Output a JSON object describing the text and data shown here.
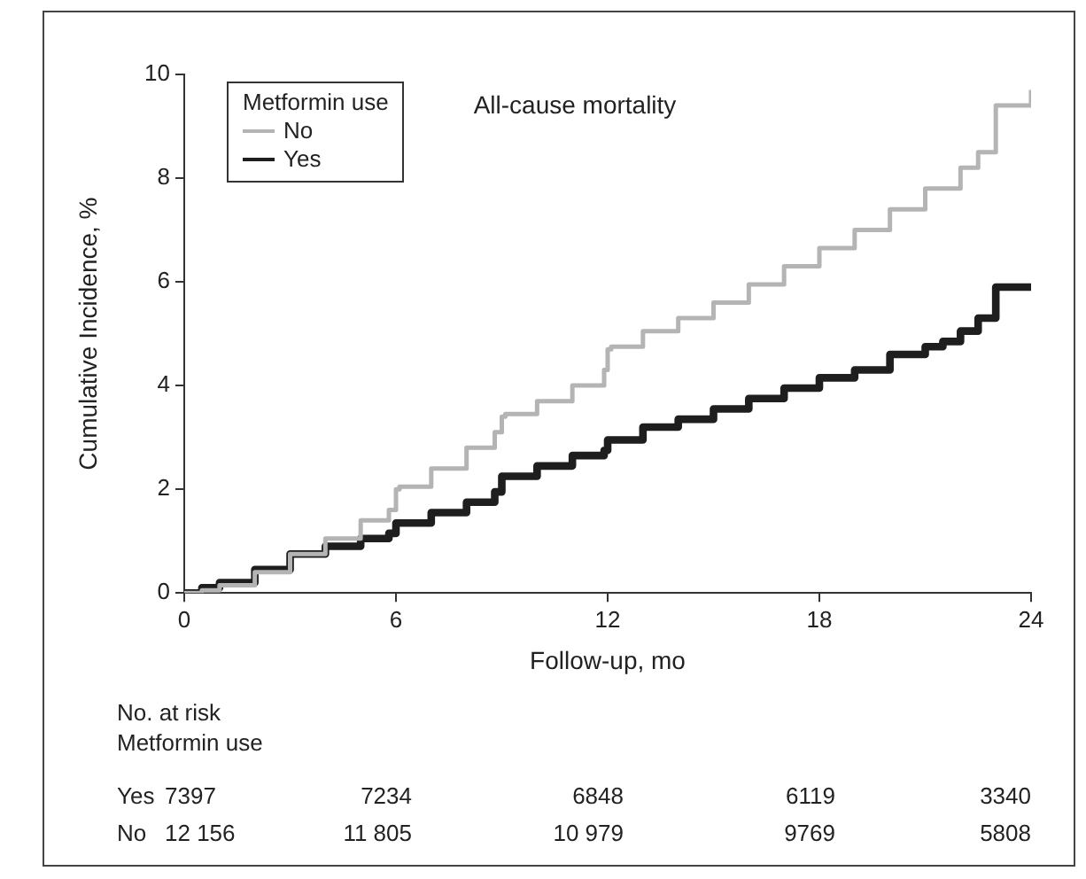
{
  "chart_data": {
    "type": "step",
    "title": "All-cause mortality",
    "xlabel": "Follow-up, mo",
    "ylabel": "Cumulative Incidence, %",
    "legend_title": "Metformin use",
    "legend": "top left",
    "grid": false,
    "xlim": [
      0,
      24
    ],
    "xticks": [
      0,
      6,
      12,
      18,
      24
    ],
    "ylim": [
      0,
      10
    ],
    "yticks": [
      0,
      2,
      4,
      6,
      8,
      10
    ],
    "series": [
      {
        "name": "No",
        "color": "#b4b4b4",
        "x": [
          0,
          0.5,
          1,
          2,
          3,
          4,
          5,
          5.8,
          6,
          6.1,
          7,
          8,
          8.8,
          9,
          9.1,
          10,
          11,
          11.9,
          12,
          12.1,
          13,
          14,
          15,
          16,
          17,
          18,
          19,
          20,
          21,
          22,
          22.5,
          23,
          24
        ],
        "values": [
          0,
          0.05,
          0.15,
          0.4,
          0.75,
          1.05,
          1.4,
          1.6,
          2.0,
          2.05,
          2.4,
          2.8,
          3.1,
          3.4,
          3.45,
          3.7,
          4.0,
          4.3,
          4.7,
          4.75,
          5.05,
          5.3,
          5.6,
          5.95,
          6.3,
          6.65,
          7.0,
          7.4,
          7.8,
          8.2,
          8.5,
          9.4,
          9.7
        ]
      },
      {
        "name": "Yes",
        "color": "#1e1e1e",
        "x": [
          0,
          0.5,
          1,
          2,
          3,
          4,
          5,
          5.8,
          6,
          7,
          8,
          8.8,
          9,
          10,
          11,
          11.9,
          12,
          13,
          14,
          15,
          16,
          17,
          18,
          19,
          20,
          21,
          21.5,
          22,
          22.5,
          23,
          24
        ],
        "values": [
          0,
          0.1,
          0.2,
          0.45,
          0.75,
          0.9,
          1.05,
          1.15,
          1.35,
          1.55,
          1.75,
          1.95,
          2.25,
          2.45,
          2.65,
          2.75,
          2.95,
          3.2,
          3.35,
          3.55,
          3.75,
          3.95,
          4.15,
          4.3,
          4.6,
          4.75,
          4.85,
          5.05,
          5.3,
          5.9,
          5.9
        ]
      }
    ],
    "annotations": [
      "No. at risk",
      "Metformin use",
      "Yes",
      "7397",
      "7234",
      "6848",
      "6119",
      "3340",
      "No",
      "12 156",
      "11 805",
      "10 979",
      "9769",
      "5808"
    ]
  }
}
